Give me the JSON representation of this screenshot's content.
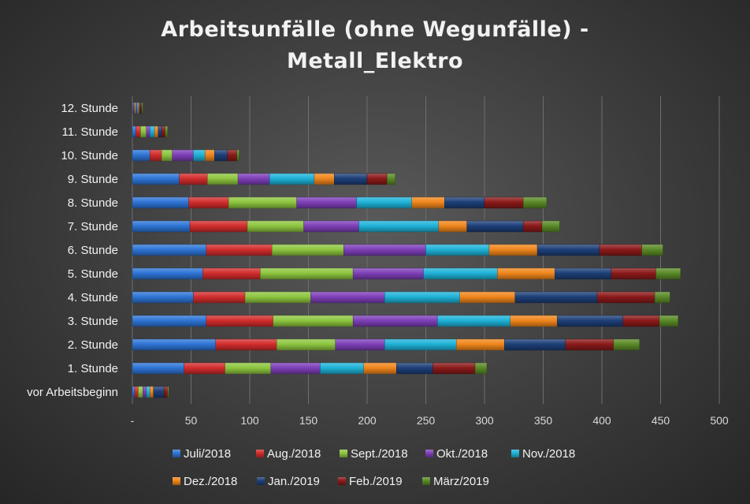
{
  "chart_data": {
    "type": "bar",
    "orientation": "horizontal",
    "stacked": true,
    "title_lines": [
      "Arbeitsunfälle (ohne Wegunfälle) -",
      "Metall_Elektro"
    ],
    "categories": [
      "12. Stunde",
      "11. Stunde",
      "10. Stunde",
      "9. Stunde",
      "8. Stunde",
      "7. Stunde",
      "6. Stunde",
      "5. Stunde",
      "4. Stunde",
      "3. Stunde",
      "2. Stunde",
      "1. Stunde",
      "vor Arbeitsbeginn"
    ],
    "x_tick_labels": [
      "-",
      "50",
      "100",
      "150",
      "200",
      "250",
      "300",
      "350",
      "400",
      "450",
      "500"
    ],
    "xlim": [
      0,
      500
    ],
    "grid": true,
    "legend_position": "bottom",
    "series": [
      {
        "name": "Juli/2018",
        "color": "#2e75d6",
        "values": [
          1,
          3,
          15,
          40,
          48,
          49,
          63,
          60,
          52,
          63,
          71,
          44,
          2
        ]
      },
      {
        "name": "Aug./2018",
        "color": "#d22d2d",
        "values": [
          1,
          4,
          10,
          24,
          34,
          49,
          56,
          49,
          44,
          57,
          52,
          35,
          3
        ]
      },
      {
        "name": "Sept./2018",
        "color": "#8dc63f",
        "values": [
          1,
          5,
          9,
          26,
          58,
          48,
          61,
          79,
          56,
          68,
          50,
          39,
          4
        ]
      },
      {
        "name": "Okt./2018",
        "color": "#7e3fb8",
        "values": [
          1,
          3,
          18,
          27,
          51,
          47,
          70,
          60,
          63,
          72,
          42,
          42,
          3
        ]
      },
      {
        "name": "Nov./2018",
        "color": "#1fb2d8",
        "values": [
          1,
          4,
          10,
          38,
          47,
          68,
          54,
          63,
          64,
          62,
          61,
          37,
          3
        ]
      },
      {
        "name": "Dez./2018",
        "color": "#f0861c",
        "values": [
          1,
          3,
          8,
          17,
          28,
          24,
          41,
          49,
          47,
          40,
          41,
          28,
          3
        ]
      },
      {
        "name": "Jan./2019",
        "color": "#1d3f78",
        "values": [
          1,
          3,
          11,
          28,
          34,
          48,
          53,
          48,
          70,
          56,
          52,
          31,
          9
        ]
      },
      {
        "name": "Feb./2019",
        "color": "#8b1a1a",
        "values": [
          1,
          3,
          8,
          17,
          33,
          16,
          36,
          38,
          49,
          31,
          41,
          36,
          3
        ]
      },
      {
        "name": "März/2019",
        "color": "#5a8a28",
        "values": [
          1,
          2,
          2,
          7,
          20,
          15,
          18,
          21,
          13,
          16,
          22,
          10,
          1
        ]
      }
    ]
  }
}
